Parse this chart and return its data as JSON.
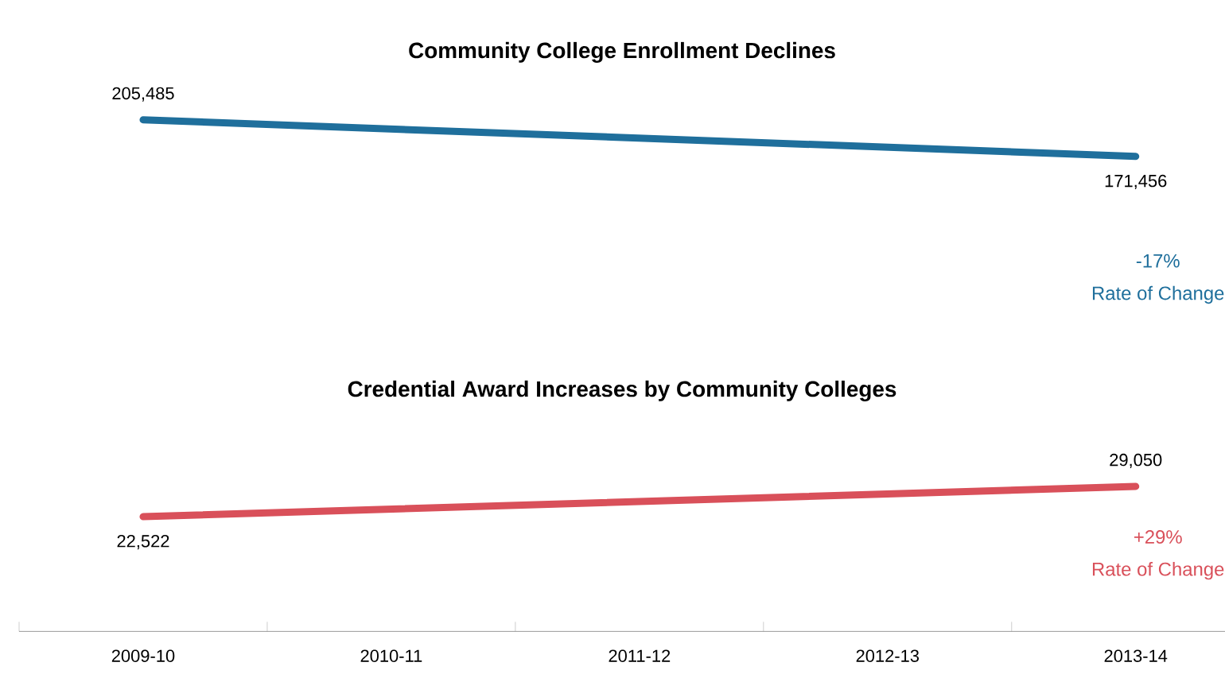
{
  "chart_data": [
    {
      "type": "line",
      "title": "Community College Enrollment Declines",
      "categories": [
        "2009-10",
        "2010-11",
        "2011-12",
        "2012-13",
        "2013-14"
      ],
      "values": [
        205485,
        null,
        null,
        null,
        171456
      ],
      "value_labels": [
        "205,485",
        null,
        null,
        null,
        "171,456"
      ],
      "color": "#1f6f9c",
      "tick_labels": false,
      "annotations": [
        "-17%",
        "Rate of Change"
      ]
    },
    {
      "type": "line",
      "title": "Credential Award Increases by Community Colleges",
      "categories": [
        "2009-10",
        "2010-11",
        "2011-12",
        "2012-13",
        "2013-14"
      ],
      "values": [
        22522,
        null,
        null,
        null,
        29050
      ],
      "value_labels": [
        "22,522",
        null,
        null,
        null,
        "29,050"
      ],
      "color": "#d9505a",
      "tick_labels": "x",
      "annotations": [
        "+29%",
        "Rate of Change"
      ]
    }
  ]
}
